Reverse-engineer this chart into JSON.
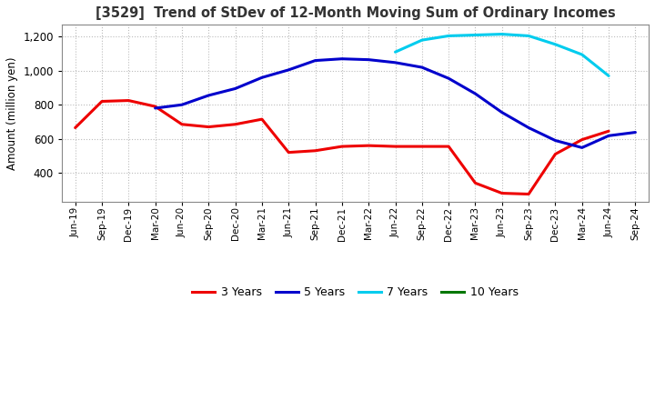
{
  "title": "[3529]  Trend of StDev of 12-Month Moving Sum of Ordinary Incomes",
  "ylabel": "Amount (million yen)",
  "ylim": [
    230,
    1270
  ],
  "yticks": [
    400,
    600,
    800,
    1000,
    1200
  ],
  "background_color": "#ffffff",
  "grid_color": "#bbbbbb",
  "line_width": 2.2,
  "x_labels": [
    "Jun-19",
    "Sep-19",
    "Dec-19",
    "Mar-20",
    "Jun-20",
    "Sep-20",
    "Dec-20",
    "Mar-21",
    "Jun-21",
    "Sep-21",
    "Dec-21",
    "Mar-22",
    "Jun-22",
    "Sep-22",
    "Dec-22",
    "Mar-23",
    "Jun-23",
    "Sep-23",
    "Dec-23",
    "Mar-24",
    "Jun-24",
    "Sep-24"
  ],
  "series": {
    "3 Years": {
      "color": "#ee0000",
      "values": [
        665,
        820,
        825,
        790,
        685,
        670,
        685,
        715,
        520,
        530,
        555,
        560,
        555,
        555,
        555,
        340,
        280,
        275,
        510,
        595,
        645,
        null
      ]
    },
    "5 Years": {
      "color": "#0000cc",
      "values": [
        null,
        null,
        null,
        780,
        800,
        855,
        895,
        960,
        1005,
        1060,
        1070,
        1065,
        1048,
        1020,
        955,
        865,
        755,
        665,
        590,
        548,
        618,
        638
      ]
    },
    "7 Years": {
      "color": "#00ccee",
      "values": [
        null,
        null,
        null,
        null,
        null,
        null,
        null,
        null,
        null,
        null,
        null,
        null,
        1110,
        1180,
        1205,
        1210,
        1215,
        1205,
        1155,
        1095,
        970,
        null
      ]
    },
    "10 Years": {
      "color": "#007700",
      "values": [
        null,
        null,
        null,
        null,
        null,
        null,
        null,
        null,
        null,
        null,
        null,
        null,
        null,
        null,
        null,
        null,
        null,
        null,
        null,
        null,
        null,
        null
      ]
    }
  },
  "legend_order": [
    "3 Years",
    "5 Years",
    "7 Years",
    "10 Years"
  ]
}
